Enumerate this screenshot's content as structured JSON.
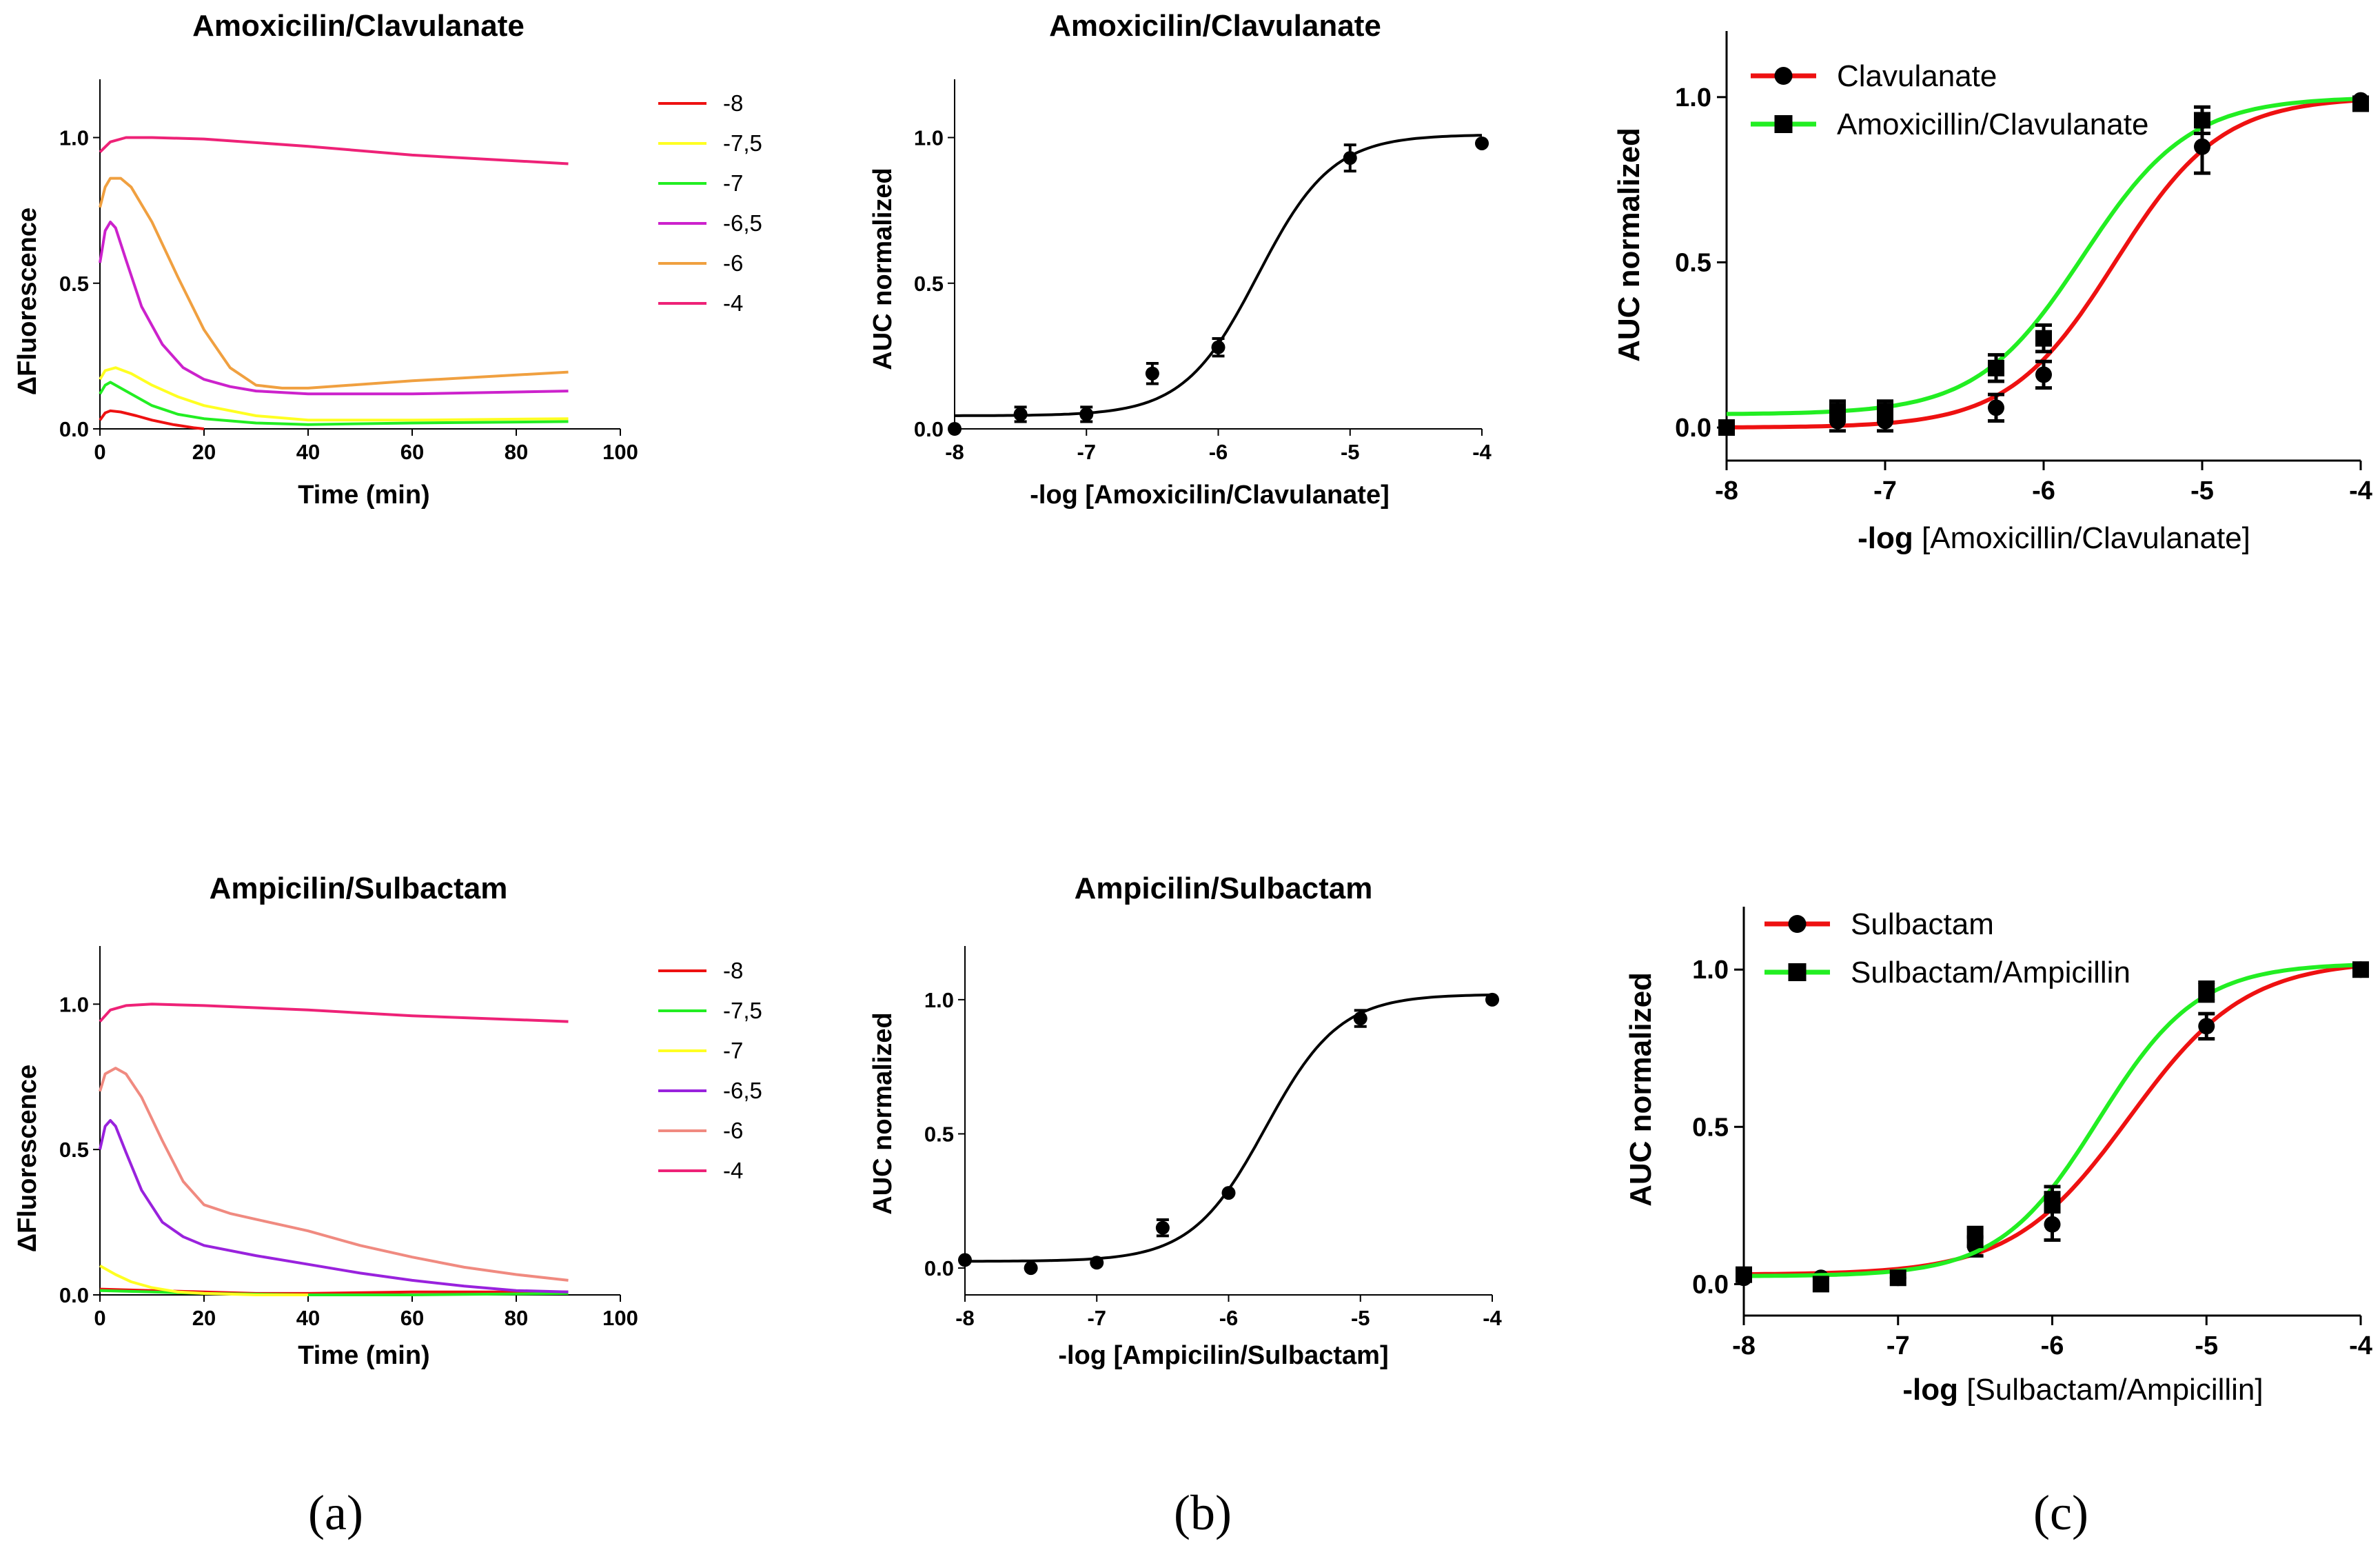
{
  "panel_labels": [
    "(a)",
    "(b)",
    "(c)"
  ],
  "colors": {
    "red": "#ee1111",
    "yellow": "#ffff22",
    "green": "#22ee22",
    "magenta": "#cc22cc",
    "purple": "#9922dd",
    "orange": "#f0a040",
    "salmon": "#f08a80",
    "pink": "#ee2277",
    "black": "#000000"
  },
  "chart_data": [
    {
      "id": "a1",
      "type": "line",
      "title": "Amoxicilin/Clavulanate",
      "xlabel": "Time (min)",
      "ylabel": "ΔFluorescence",
      "xlim": [
        0,
        100
      ],
      "ylim": [
        0,
        1.2
      ],
      "xticks": [
        "0",
        "20",
        "40",
        "60",
        "80",
        "100"
      ],
      "xtick_values": [
        0,
        20,
        40,
        60,
        80,
        100
      ],
      "yticks": [
        "0.0",
        "0.5",
        "1.0"
      ],
      "ytick_values": [
        0,
        0.5,
        1.0
      ],
      "legend": [
        "-8",
        "-7,5",
        "-7",
        "-6,5",
        "-6",
        "-4"
      ],
      "series": [
        {
          "name": "-8",
          "color": "red",
          "x": [
            0,
            1,
            2,
            4,
            7,
            10,
            14,
            18,
            20
          ],
          "y": [
            0.03,
            0.055,
            0.062,
            0.058,
            0.045,
            0.03,
            0.015,
            0.004,
            0.0
          ]
        },
        {
          "name": "-7,5",
          "color": "yellow",
          "x": [
            0,
            1,
            3,
            6,
            10,
            15,
            20,
            30,
            40,
            60,
            90
          ],
          "y": [
            0.17,
            0.2,
            0.21,
            0.19,
            0.15,
            0.11,
            0.08,
            0.045,
            0.03,
            0.03,
            0.035
          ]
        },
        {
          "name": "-7",
          "color": "green",
          "x": [
            0,
            1,
            2,
            5,
            10,
            15,
            20,
            30,
            40,
            60,
            90
          ],
          "y": [
            0.12,
            0.15,
            0.16,
            0.13,
            0.08,
            0.05,
            0.035,
            0.02,
            0.015,
            0.02,
            0.025
          ]
        },
        {
          "name": "-6,5",
          "color": "magenta",
          "x": [
            0,
            1,
            2,
            3,
            5,
            8,
            12,
            16,
            20,
            25,
            30,
            40,
            60,
            90
          ],
          "y": [
            0.57,
            0.68,
            0.71,
            0.69,
            0.58,
            0.42,
            0.29,
            0.21,
            0.17,
            0.145,
            0.13,
            0.12,
            0.12,
            0.13
          ]
        },
        {
          "name": "-6",
          "color": "orange",
          "x": [
            0,
            1,
            2,
            4,
            6,
            10,
            15,
            20,
            25,
            30,
            35,
            40,
            60,
            90
          ],
          "y": [
            0.76,
            0.83,
            0.86,
            0.86,
            0.83,
            0.71,
            0.52,
            0.34,
            0.21,
            0.15,
            0.14,
            0.14,
            0.165,
            0.195
          ]
        },
        {
          "name": "-4",
          "color": "pink",
          "x": [
            0,
            2,
            5,
            10,
            20,
            40,
            60,
            90
          ],
          "y": [
            0.95,
            0.985,
            1.0,
            1.0,
            0.995,
            0.97,
            0.94,
            0.91
          ]
        }
      ]
    },
    {
      "id": "b1",
      "type": "scatter",
      "title": "Amoxicilin/Clavulanate",
      "xlabel": "-log [Amoxicilin/Clavulanate]",
      "ylabel": "AUC normalized",
      "xlim": [
        -8,
        -4
      ],
      "ylim": [
        0,
        1.2
      ],
      "xticks": [
        "-8",
        "-7",
        "-6",
        "-5",
        "-4"
      ],
      "xtick_values": [
        -8,
        -7,
        -6,
        -5,
        -4
      ],
      "yticks": [
        "0.0",
        "0.5",
        "1.0"
      ],
      "ytick_values": [
        0,
        0.5,
        1.0
      ],
      "series": [
        {
          "name": "Amoxicilin/Clavulanate",
          "color": "black",
          "marker": "circle",
          "x": [
            -8,
            -7.5,
            -7,
            -6.5,
            -6,
            -5,
            -4
          ],
          "y": [
            0.0,
            0.05,
            0.05,
            0.19,
            0.28,
            0.93,
            0.98
          ],
          "err": [
            0,
            0.025,
            0.025,
            0.035,
            0.03,
            0.045,
            0
          ],
          "fit": {
            "bottom": 0.045,
            "top": 1.01,
            "logEC50": -5.7,
            "hill": 1.55
          }
        }
      ]
    },
    {
      "id": "c1",
      "type": "scatter",
      "title": "",
      "xlabel_bold": "-log",
      "xlabel_rest": " [Amoxicillin/Clavulanate]",
      "ylabel": "AUC normalized",
      "xlim": [
        -8,
        -4
      ],
      "ylim": [
        -0.1,
        1.2
      ],
      "xticks": [
        "-8",
        "-7",
        "-6",
        "-5",
        "-4"
      ],
      "xtick_values": [
        -8,
        -7,
        -6,
        -5,
        -4
      ],
      "yticks": [
        "0.0",
        "0.5",
        "1.0"
      ],
      "ytick_values": [
        0,
        0.5,
        1.0
      ],
      "legend": [
        "Clavulanate",
        "Amoxicillin/Clavulanate"
      ],
      "series": [
        {
          "name": "Clavulanate",
          "color": "red",
          "marker": "circle",
          "x": [
            -8,
            -7.3,
            -7,
            -6.3,
            -6,
            -5,
            -4
          ],
          "y": [
            0.0,
            0.02,
            0.02,
            0.06,
            0.16,
            0.85,
            0.99
          ],
          "err": [
            0,
            0.03,
            0.03,
            0.04,
            0.04,
            0.08,
            0
          ],
          "fit": {
            "bottom": 0.0,
            "top": 1.0,
            "logEC50": -5.55,
            "hill": 1.3
          }
        },
        {
          "name": "Amoxicillin/Clavulanate",
          "color": "green",
          "marker": "square",
          "x": [
            -8,
            -7.3,
            -7,
            -6.3,
            -6,
            -5,
            -4
          ],
          "y": [
            0.0,
            0.05,
            0.05,
            0.18,
            0.27,
            0.93,
            0.98
          ],
          "err": [
            0,
            0.03,
            0.03,
            0.04,
            0.04,
            0.04,
            0
          ],
          "fit": {
            "bottom": 0.04,
            "top": 1.0,
            "logEC50": -5.75,
            "hill": 1.3
          }
        }
      ]
    },
    {
      "id": "a2",
      "type": "line",
      "title": "Ampicilin/Sulbactam",
      "xlabel": "Time (min)",
      "ylabel": "ΔFluorescence",
      "xlim": [
        0,
        100
      ],
      "ylim": [
        0,
        1.2
      ],
      "xticks": [
        "0",
        "20",
        "40",
        "60",
        "80",
        "100"
      ],
      "xtick_values": [
        0,
        20,
        40,
        60,
        80,
        100
      ],
      "yticks": [
        "0.0",
        "0.5",
        "1.0"
      ],
      "ytick_values": [
        0,
        0.5,
        1.0
      ],
      "legend": [
        "-8",
        "-7,5",
        "-7",
        "-6,5",
        "-6",
        "-4"
      ],
      "series": [
        {
          "name": "-8",
          "color": "red",
          "x": [
            0,
            10,
            20,
            30,
            40,
            60,
            90
          ],
          "y": [
            0.02,
            0.015,
            0.01,
            0.005,
            0.005,
            0.01,
            0.01
          ]
        },
        {
          "name": "-7,5",
          "color": "green",
          "x": [
            0,
            10,
            20,
            40,
            60,
            90
          ],
          "y": [
            0.015,
            0.01,
            0.005,
            0.0,
            0.0,
            0.005
          ]
        },
        {
          "name": "-7",
          "color": "yellow",
          "x": [
            0,
            3,
            6,
            10,
            15,
            20,
            30,
            40
          ],
          "y": [
            0.1,
            0.07,
            0.045,
            0.025,
            0.01,
            0.005,
            0.0,
            0.0
          ]
        },
        {
          "name": "-6,5",
          "color": "purple",
          "x": [
            0,
            1,
            2,
            3,
            5,
            8,
            12,
            16,
            20,
            30,
            40,
            50,
            60,
            70,
            80,
            90
          ],
          "y": [
            0.5,
            0.58,
            0.6,
            0.58,
            0.49,
            0.36,
            0.25,
            0.2,
            0.17,
            0.135,
            0.105,
            0.075,
            0.05,
            0.03,
            0.015,
            0.01
          ]
        },
        {
          "name": "-6",
          "color": "salmon",
          "x": [
            0,
            1,
            3,
            5,
            8,
            12,
            16,
            20,
            25,
            30,
            40,
            50,
            60,
            70,
            80,
            90
          ],
          "y": [
            0.7,
            0.76,
            0.78,
            0.76,
            0.68,
            0.53,
            0.39,
            0.31,
            0.28,
            0.26,
            0.22,
            0.17,
            0.13,
            0.095,
            0.07,
            0.05
          ]
        },
        {
          "name": "-4",
          "color": "pink",
          "x": [
            0,
            2,
            5,
            10,
            20,
            40,
            60,
            90
          ],
          "y": [
            0.94,
            0.98,
            0.995,
            1.0,
            0.995,
            0.98,
            0.96,
            0.94
          ]
        }
      ]
    },
    {
      "id": "b2",
      "type": "scatter",
      "title": "Ampicilin/Sulbactam",
      "xlabel": "-log [Ampicilin/Sulbactam]",
      "ylabel": "AUC normalized",
      "xlim": [
        -8,
        -4
      ],
      "ylim": [
        -0.1,
        1.2
      ],
      "xticks": [
        "-8",
        "-7",
        "-6",
        "-5",
        "-4"
      ],
      "xtick_values": [
        -8,
        -7,
        -6,
        -5,
        -4
      ],
      "yticks": [
        "0.0",
        "0.5",
        "1.0"
      ],
      "ytick_values": [
        0,
        0.5,
        1.0
      ],
      "series": [
        {
          "name": "Ampicilin/Sulbactam",
          "color": "black",
          "marker": "circle",
          "x": [
            -8,
            -7.5,
            -7,
            -6.5,
            -6,
            -5,
            -4
          ],
          "y": [
            0.03,
            0.0,
            0.02,
            0.15,
            0.28,
            0.93,
            1.0
          ],
          "err": [
            0,
            0,
            0,
            0.03,
            0,
            0.03,
            0
          ],
          "fit": {
            "bottom": 0.025,
            "top": 1.02,
            "logEC50": -5.72,
            "hill": 1.55
          }
        }
      ]
    },
    {
      "id": "c2",
      "type": "scatter",
      "title": "",
      "xlabel_bold": "-log",
      "xlabel_rest": " [Sulbactam/Ampicillin]",
      "ylabel": "AUC normalized",
      "xlim": [
        -8,
        -4
      ],
      "ylim": [
        -0.1,
        1.2
      ],
      "xticks": [
        "-8",
        "-7",
        "-6",
        "-5",
        "-4"
      ],
      "xtick_values": [
        -8,
        -7,
        -6,
        -5,
        -4
      ],
      "yticks": [
        "0.0",
        "0.5",
        "1.0"
      ],
      "ytick_values": [
        0,
        0.5,
        1.0
      ],
      "legend": [
        "Sulbactam",
        "Sulbactam/Ampicillin"
      ],
      "series": [
        {
          "name": "Sulbactam",
          "color": "red",
          "marker": "circle",
          "x": [
            -8,
            -7.5,
            -7,
            -6.5,
            -6,
            -5,
            -4
          ],
          "y": [
            0.02,
            0.02,
            0.02,
            0.12,
            0.19,
            0.82,
            1.0
          ],
          "err": [
            0,
            0,
            0,
            0.03,
            0.05,
            0.04,
            0
          ],
          "fit": {
            "bottom": 0.03,
            "top": 1.03,
            "logEC50": -5.5,
            "hill": 1.15
          }
        },
        {
          "name": "Sulbactam/Ampicillin",
          "color": "green",
          "marker": "square",
          "x": [
            -8,
            -7.5,
            -7,
            -6.5,
            -6,
            -5,
            -4
          ],
          "y": [
            0.03,
            0.0,
            0.02,
            0.15,
            0.27,
            0.93,
            1.0
          ],
          "err": [
            0,
            0,
            0,
            0.03,
            0.04,
            0.03,
            0
          ],
          "fit": {
            "bottom": 0.025,
            "top": 1.02,
            "logEC50": -5.7,
            "hill": 1.35
          }
        }
      ]
    }
  ]
}
